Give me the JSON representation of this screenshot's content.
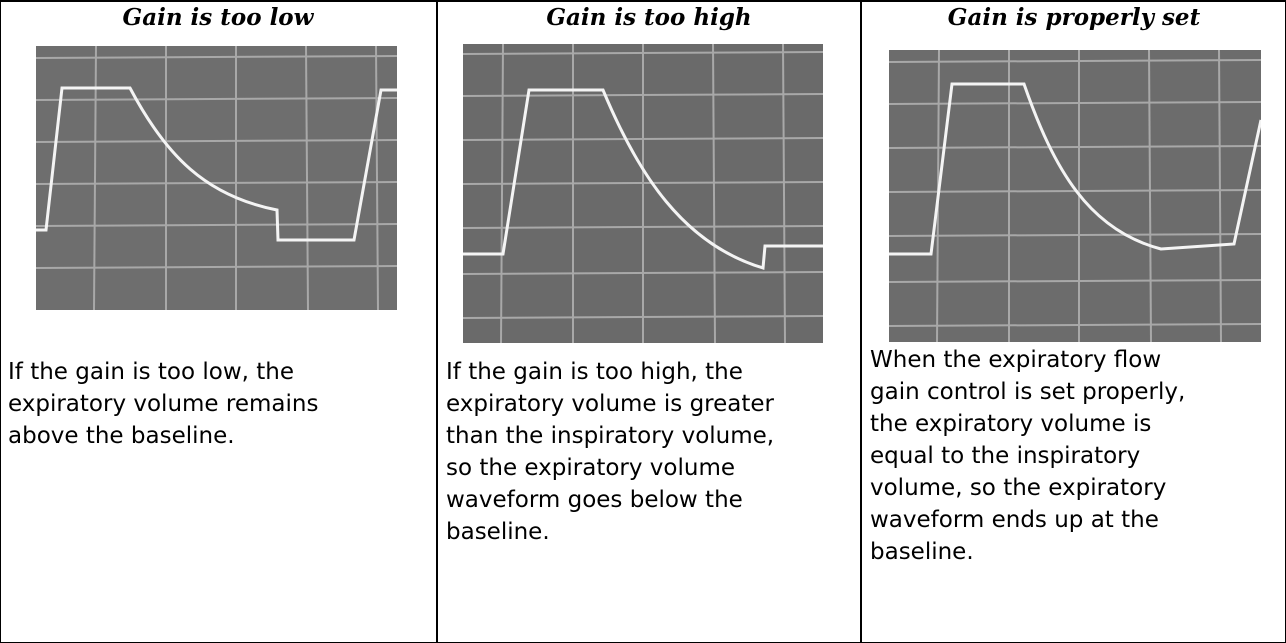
{
  "panels": [
    {
      "title": "Gain is too low",
      "lines": [
        "If the gain is too low, the",
        "expiratory volume remains",
        "above the baseline."
      ]
    },
    {
      "title": "Gain is too high",
      "lines": [
        "If the gain is too high, the",
        "expiratory volume is greater",
        "than the inspiratory volume,",
        "so the expiratory volume",
        "waveform goes below the",
        "baseline."
      ]
    },
    {
      "title": "Gain is properly set",
      "lines": [
        "When the expiratory flow",
        "gain control is set properly,",
        "the expiratory volume is",
        "equal to the inspiratory",
        "volume, so the expiratory",
        "waveform ends up at the",
        "baseline."
      ]
    }
  ]
}
